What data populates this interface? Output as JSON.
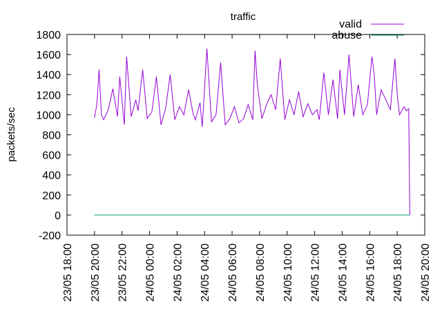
{
  "chart_data": {
    "type": "line",
    "title": "traffic",
    "xlabel": "",
    "ylabel": "packets/sec",
    "ylim": [
      -200,
      1800
    ],
    "y_ticks": [
      -200,
      0,
      200,
      400,
      600,
      800,
      1000,
      1200,
      1400,
      1600,
      1800
    ],
    "xlim": [
      "23/05 18:00",
      "24/05 20:00"
    ],
    "x_ticks": [
      "23/05 18:00",
      "23/05 20:00",
      "23/05 22:00",
      "24/05 00:00",
      "24/05 02:00",
      "24/05 04:00",
      "24/05 06:00",
      "24/05 08:00",
      "24/05 10:00",
      "24/05 12:00",
      "24/05 14:00",
      "24/05 16:00",
      "24/05 18:00",
      "24/05 20:00"
    ],
    "grid": false,
    "legend_position": "top-right",
    "series": [
      {
        "name": "valid",
        "color": "#9400d3",
        "x": [
          "23/05 20:00",
          "23/05 20:10",
          "23/05 20:20",
          "23/05 20:30",
          "23/05 20:40",
          "23/05 21:00",
          "23/05 21:20",
          "23/05 21:40",
          "23/05 21:50",
          "23/05 22:10",
          "23/05 22:20",
          "23/05 22:40",
          "23/05 23:00",
          "23/05 23:10",
          "23/05 23:30",
          "23/05 23:50",
          "24/05 00:10",
          "24/05 00:30",
          "24/05 00:50",
          "24/05 01:10",
          "24/05 01:30",
          "24/05 01:50",
          "24/05 02:10",
          "24/05 02:30",
          "24/05 02:50",
          "24/05 03:10",
          "24/05 03:20",
          "24/05 03:40",
          "24/05 03:50",
          "24/05 04:10",
          "24/05 04:30",
          "24/05 04:50",
          "24/05 05:10",
          "24/05 05:30",
          "24/05 05:50",
          "24/05 06:10",
          "24/05 06:30",
          "24/05 06:50",
          "24/05 07:10",
          "24/05 07:30",
          "24/05 07:40",
          "24/05 07:50",
          "24/05 08:10",
          "24/05 08:30",
          "24/05 08:50",
          "24/05 09:10",
          "24/05 09:30",
          "24/05 09:50",
          "24/05 10:10",
          "24/05 10:30",
          "24/05 10:50",
          "24/05 11:10",
          "24/05 11:30",
          "24/05 11:50",
          "24/05 12:10",
          "24/05 12:20",
          "24/05 12:40",
          "24/05 13:00",
          "24/05 13:20",
          "24/05 13:40",
          "24/05 13:50",
          "24/05 14:10",
          "24/05 14:30",
          "24/05 14:50",
          "24/05 15:10",
          "24/05 15:30",
          "24/05 15:50",
          "24/05 16:10",
          "24/05 16:20",
          "24/05 16:30",
          "24/05 16:50",
          "24/05 17:10",
          "24/05 17:30",
          "24/05 17:50",
          "24/05 18:00",
          "24/05 18:10",
          "24/05 18:30",
          "24/05 18:40",
          "24/05 18:50",
          "24/05 18:55"
        ],
        "values": [
          970,
          1100,
          1450,
          1000,
          950,
          1050,
          1260,
          980,
          1380,
          900,
          1580,
          980,
          1150,
          1040,
          1450,
          960,
          1030,
          1380,
          900,
          1060,
          1400,
          950,
          1080,
          1000,
          1250,
          1010,
          950,
          1120,
          880,
          1660,
          930,
          1000,
          1520,
          900,
          960,
          1080,
          920,
          960,
          1100,
          950,
          1640,
          1300,
          960,
          1100,
          1200,
          1050,
          1560,
          950,
          1150,
          1000,
          1230,
          980,
          1110,
          1000,
          1050,
          950,
          1420,
          1000,
          1350,
          960,
          1450,
          1000,
          1600,
          980,
          1300,
          1000,
          1100,
          1580,
          1400,
          1000,
          1250,
          1150,
          1050,
          1560,
          1200,
          1000,
          1080,
          1040,
          1060,
          0
        ]
      },
      {
        "name": "abuse",
        "color": "#009e73",
        "x": [
          "23/05 20:00",
          "24/05 18:55"
        ],
        "values": [
          0,
          0
        ]
      }
    ]
  }
}
